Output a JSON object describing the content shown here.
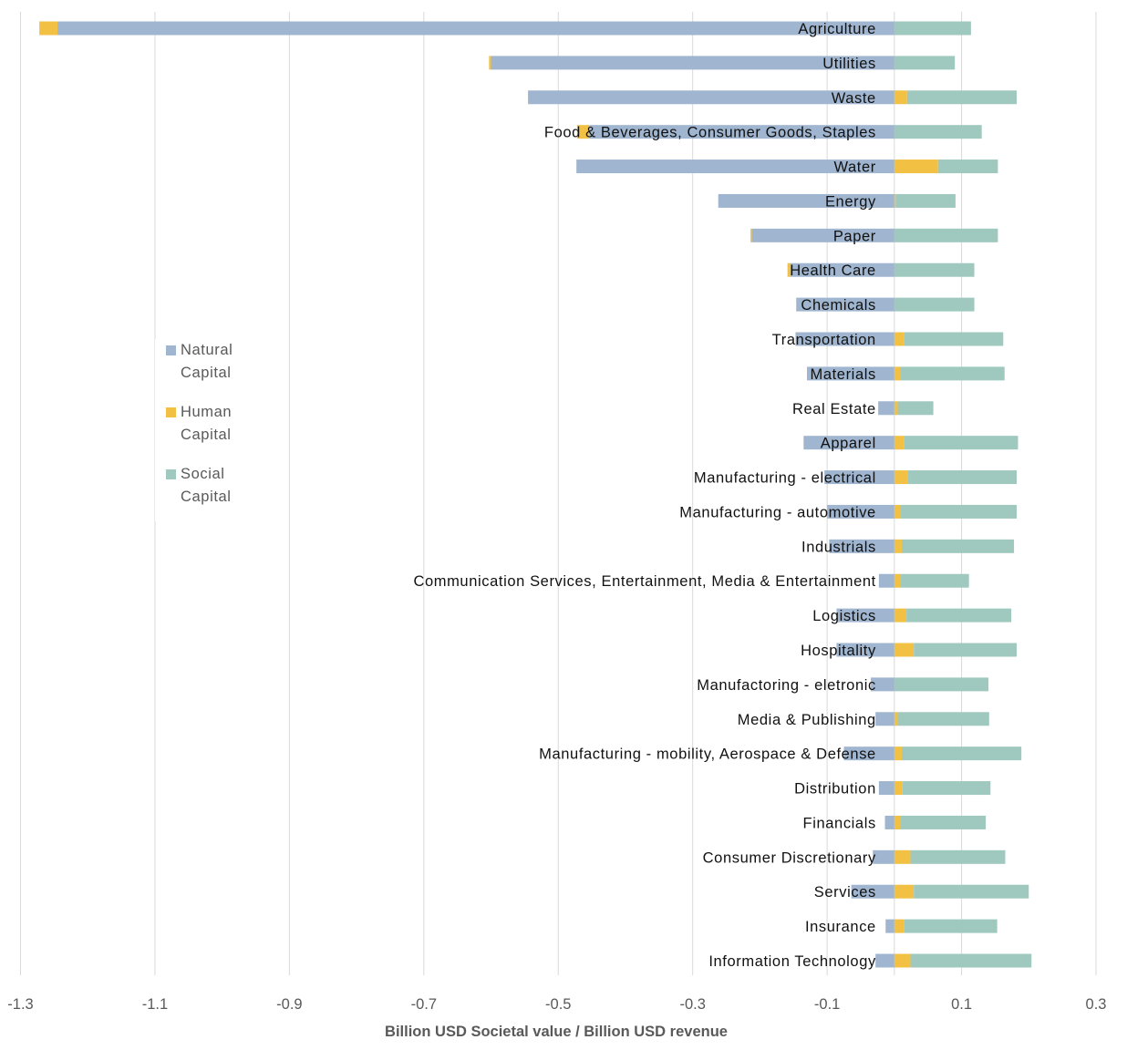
{
  "chart_data": {
    "type": "bar",
    "orientation": "horizontal",
    "stacked": true,
    "title": "",
    "xlabel": "Billion USD Societal value / Billion USD revenue",
    "ylabel": "",
    "xlim": [
      -1.3,
      0.3
    ],
    "xticks": [
      -1.3,
      -1.1,
      -0.9,
      -0.7,
      -0.5,
      -0.3,
      -0.1,
      0.1,
      0.3
    ],
    "xtick_labels": [
      "-1.3",
      "-1.1",
      "-0.9",
      "-0.7",
      "-0.5",
      "-0.3",
      "-0.1",
      "0.1",
      "0.3"
    ],
    "grid": "vertical",
    "legend_position": "left-middle",
    "categories": [
      "Agriculture",
      "Utilities",
      "Waste",
      "Food & Beverages, Consumer Goods, Staples",
      "Water",
      "Energy",
      "Paper",
      "Health Care",
      "Chemicals",
      "Transportation",
      "Materials",
      "Real Estate",
      "Apparel",
      "Manufacturing - electrical",
      "Manufacturing - automotive",
      "Industrials",
      "Communication Services, Entertainment, Media & Entertainment",
      "Logistics",
      "Hospitality",
      "Manufactoring - eletronic",
      "Media & Publishing",
      "Manufacturing - mobility, Aerospace & Defense",
      "Distribution",
      "Financials",
      "Consumer Discretionary",
      "Services",
      "Insurance",
      "Information Technology"
    ],
    "series": [
      {
        "name": "Natural Capital",
        "color": "#a0b6d0",
        "values": [
          -1.245,
          -0.6,
          -0.545,
          -0.454,
          -0.473,
          -0.262,
          -0.212,
          -0.155,
          -0.146,
          -0.147,
          -0.13,
          -0.024,
          -0.135,
          -0.104,
          -0.1,
          -0.097,
          -0.023,
          -0.086,
          -0.086,
          -0.035,
          -0.028,
          -0.075,
          -0.023,
          -0.014,
          -0.032,
          -0.064,
          -0.013,
          -0.028
        ]
      },
      {
        "name": "Human Capital",
        "color": "#f2c144",
        "values": [
          -0.027,
          -0.003,
          0.019,
          -0.018,
          0.065,
          0.002,
          -0.002,
          -0.004,
          0.0,
          0.015,
          0.009,
          0.005,
          0.015,
          0.02,
          0.009,
          0.011,
          0.009,
          0.018,
          0.029,
          0.0,
          0.005,
          0.011,
          0.012,
          0.009,
          0.024,
          0.029,
          0.015,
          0.024
        ]
      },
      {
        "name": "Social Capital",
        "color": "#9fc8bf",
        "values": [
          0.114,
          0.09,
          0.163,
          0.13,
          0.089,
          0.089,
          0.154,
          0.119,
          0.119,
          0.147,
          0.155,
          0.053,
          0.169,
          0.162,
          0.173,
          0.167,
          0.102,
          0.156,
          0.153,
          0.14,
          0.136,
          0.178,
          0.131,
          0.127,
          0.141,
          0.171,
          0.138,
          0.18
        ]
      }
    ]
  },
  "legend": {
    "items": [
      {
        "label_line1": "Natural",
        "label_line2": "Capital",
        "color": "#a0b6d0"
      },
      {
        "label_line1": "Human",
        "label_line2": "Capital",
        "color": "#f2c144"
      },
      {
        "label_line1": "Social",
        "label_line2": "Capital",
        "color": "#9fc8bf"
      }
    ]
  }
}
